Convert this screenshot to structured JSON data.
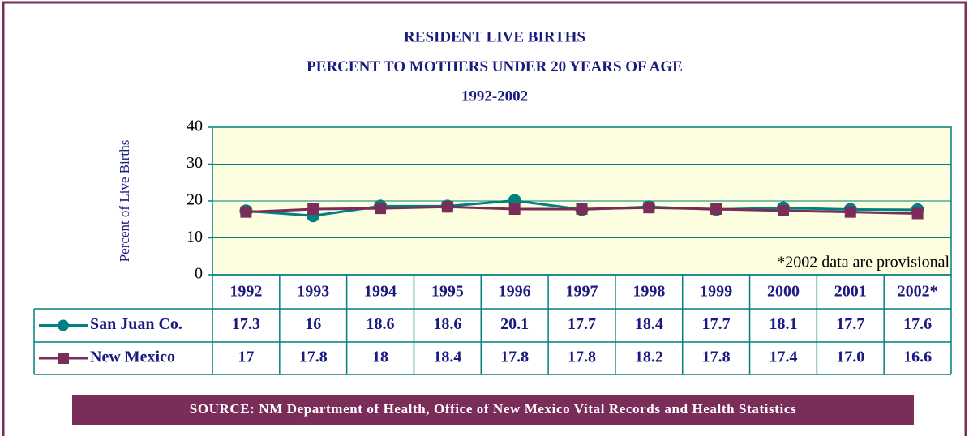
{
  "chart_data": {
    "type": "line",
    "title": [
      "RESIDENT LIVE BIRTHS",
      "PERCENT TO MOTHERS UNDER 20 YEARS OF AGE",
      "1992-2002"
    ],
    "y_label": "Percent of Live Births",
    "annotation": "*2002 data are provisional",
    "source": "SOURCE: NM Department of Health, Office of New Mexico Vital Records and Health Statistics",
    "categories": [
      "1992",
      "1993",
      "1994",
      "1995",
      "1996",
      "1997",
      "1998",
      "1999",
      "2000",
      "2001",
      "2002*"
    ],
    "series": [
      {
        "name": "San Juan Co.",
        "color": "#008080",
        "marker": "circle",
        "values": [
          17.3,
          16,
          18.6,
          18.6,
          20.1,
          17.7,
          18.4,
          17.7,
          18.1,
          17.7,
          17.6
        ]
      },
      {
        "name": "New Mexico",
        "color": "#7b2d5a",
        "marker": "square",
        "values": [
          17,
          17.8,
          18,
          18.4,
          17.8,
          17.8,
          18.2,
          17.8,
          17.4,
          17.0,
          16.6
        ],
        "value_labels": [
          "17",
          "17.8",
          "18",
          "18.4",
          "17.8",
          "17.8",
          "18.2",
          "17.8",
          "17.4",
          "17.0",
          "16.6"
        ]
      }
    ],
    "ylim": [
      0,
      40
    ],
    "yticks": [
      0,
      10,
      20,
      30,
      40
    ],
    "grid": true
  }
}
